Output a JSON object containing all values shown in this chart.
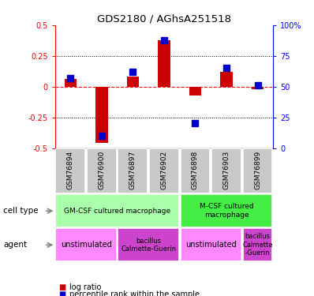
{
  "title": "GDS2180 / AGhsA251518",
  "samples": [
    "GSM76894",
    "GSM76900",
    "GSM76897",
    "GSM76902",
    "GSM76898",
    "GSM76903",
    "GSM76899"
  ],
  "log_ratio": [
    0.06,
    -0.46,
    0.08,
    0.38,
    -0.07,
    0.12,
    -0.02
  ],
  "percentile": [
    0.57,
    0.1,
    0.62,
    0.88,
    0.2,
    0.65,
    0.51
  ],
  "ylim_left": [
    -0.5,
    0.5
  ],
  "ylim_right": [
    0,
    100
  ],
  "bar_color": "#cc0000",
  "dot_color": "#0000cc",
  "cell_type_groups": [
    {
      "label": "GM-CSF cultured macrophage",
      "cols": [
        0,
        1,
        2,
        3
      ],
      "color": "#aaffaa"
    },
    {
      "label": "M-CSF cultured\nmacrophage",
      "cols": [
        4,
        5,
        6
      ],
      "color": "#44ee44"
    }
  ],
  "agent_groups": [
    {
      "label": "unstimulated",
      "cols": [
        0,
        1
      ],
      "color": "#ff88ff"
    },
    {
      "label": "bacillus\nCalmette-Guerin",
      "cols": [
        2,
        3
      ],
      "color": "#cc44cc"
    },
    {
      "label": "unstimulated",
      "cols": [
        4,
        5
      ],
      "color": "#ff88ff"
    },
    {
      "label": "bacillus\nCalmette\n-Guerin",
      "cols": [
        6
      ],
      "color": "#cc44cc"
    }
  ],
  "left_yticks": [
    -0.5,
    -0.25,
    0,
    0.25,
    0.5
  ],
  "right_ytick_vals": [
    0,
    25,
    50,
    75,
    100
  ],
  "right_ytick_labels": [
    "0",
    "25",
    "50",
    "75",
    "100%"
  ],
  "background_color": "#ffffff",
  "sample_bg_color": "#c8c8c8",
  "bar_width": 0.4,
  "dot_size": 35
}
